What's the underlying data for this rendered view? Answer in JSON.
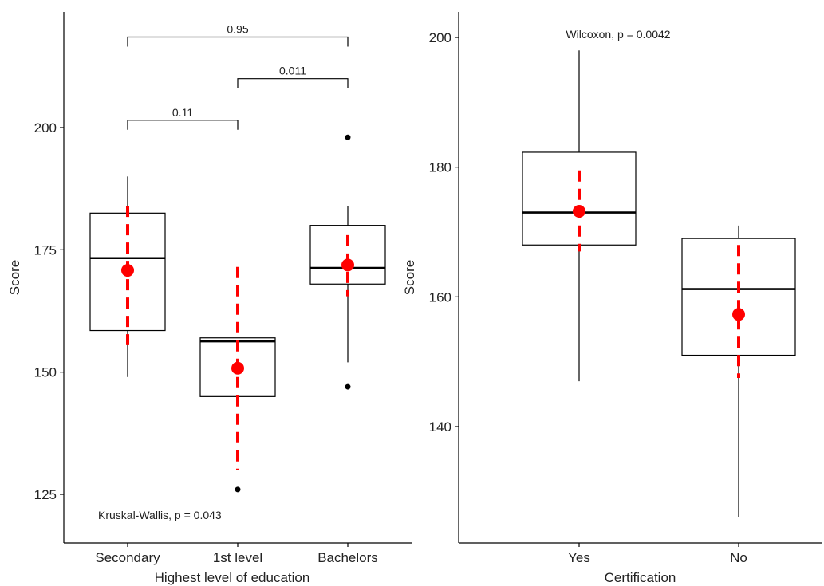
{
  "chart_data": [
    {
      "type": "box",
      "xlabel": "Highest level of education",
      "ylabel": "Score",
      "ylim": [
        115,
        220
      ],
      "yticks": [
        125,
        150,
        175,
        200
      ],
      "categories": [
        "Secondary",
        "1st level",
        "Bachelors"
      ],
      "boxes": [
        {
          "category": "Secondary",
          "whisker_low": 149,
          "q1": 158.5,
          "median": 173.3,
          "q3": 182.5,
          "whisker_high": 190,
          "outliers": [],
          "mean": 170.8,
          "mean_ci": [
            155.5,
            184
          ]
        },
        {
          "category": "1st level",
          "whisker_low": 145,
          "q1": 145,
          "median": 156.3,
          "q3": 157,
          "whisker_high": 157,
          "outliers": [
            126
          ],
          "mean": 150.8,
          "mean_ci": [
            130,
            171.5
          ]
        },
        {
          "category": "Bachelors",
          "whisker_low": 152,
          "q1": 168,
          "median": 171.3,
          "q3": 180,
          "whisker_high": 184,
          "outliers": [
            147,
            198
          ],
          "mean": 171.9,
          "mean_ci": [
            165.5,
            178
          ]
        }
      ],
      "comparisons": [
        {
          "from": "Secondary",
          "to": "1st level",
          "label": "0.11",
          "y": 201.5
        },
        {
          "from": "1st level",
          "to": "Bachelors",
          "label": "0.011",
          "y": 210
        },
        {
          "from": "Secondary",
          "to": "Bachelors",
          "label": "0.95",
          "y": 218.5
        }
      ],
      "test_label": "Kruskal-Wallis, p = 0.043"
    },
    {
      "type": "box",
      "xlabel": "Certification",
      "ylabel": "Score",
      "ylim": [
        123,
        204
      ],
      "yticks": [
        140,
        160,
        180,
        200
      ],
      "categories": [
        "Yes",
        "No"
      ],
      "boxes": [
        {
          "category": "Yes",
          "whisker_low": 147,
          "q1": 168,
          "median": 173,
          "q3": 182.3,
          "whisker_high": 198,
          "outliers": [],
          "mean": 173.2,
          "mean_ci": [
            167,
            179.5
          ]
        },
        {
          "category": "No",
          "whisker_low": 126,
          "q1": 151,
          "median": 161.2,
          "q3": 169,
          "whisker_high": 171,
          "outliers": [],
          "mean": 157.3,
          "mean_ci": [
            147.5,
            168
          ]
        }
      ],
      "comparisons": [],
      "test_label": "Wilcoxon, p = 0.0042"
    }
  ],
  "colors": {
    "mean": "#ff0000",
    "box": "#000000",
    "axis": "#000000"
  }
}
